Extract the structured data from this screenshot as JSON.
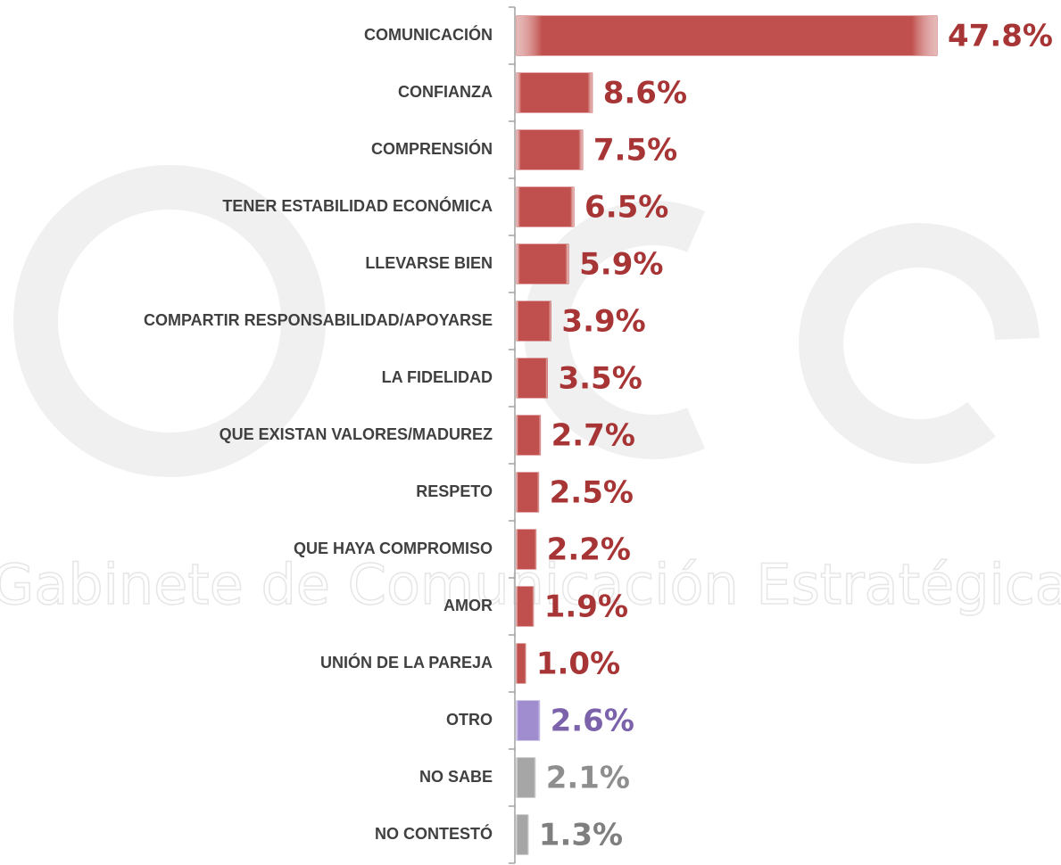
{
  "chart_data": {
    "type": "barh",
    "watermark": "Gabinete de Comunicación Estratégica",
    "categories": [
      "COMUNICACIÓN",
      "CONFIANZA",
      "COMPRENSIÓN",
      "TENER ESTABILIDAD ECONÓMICA",
      "LLEVARSE BIEN",
      "COMPARTIR RESPONSABILIDAD/APOYARSE",
      "LA FIDELIDAD",
      "QUE EXISTAN VALORES/MADUREZ",
      "RESPETO",
      "QUE HAYA COMPROMISO",
      "AMOR",
      "UNIÓN DE LA PAREJA",
      "OTRO",
      "NO SABE",
      "NO CONTESTÓ"
    ],
    "values": [
      47.8,
      8.6,
      7.5,
      6.5,
      5.9,
      3.9,
      3.5,
      2.7,
      2.5,
      2.2,
      1.9,
      1.0,
      2.6,
      2.1,
      1.3
    ],
    "value_labels": [
      "47.8%",
      "8.6%",
      "7.5%",
      "6.5%",
      "5.9%",
      "3.9%",
      "3.5%",
      "2.7%",
      "2.5%",
      "2.2%",
      "1.9%",
      "1.0%",
      "2.6%",
      "2.1%",
      "1.3%"
    ],
    "colors": [
      "#c0504d",
      "#c0504d",
      "#c0504d",
      "#c0504d",
      "#c0504d",
      "#c0504d",
      "#c0504d",
      "#c0504d",
      "#c0504d",
      "#c0504d",
      "#c0504d",
      "#c0504d",
      "#a08dd0",
      "#a6a6a6",
      "#a6a6a6"
    ],
    "label_colors": [
      "#a83535",
      "#a83535",
      "#a83535",
      "#a83535",
      "#a83535",
      "#a83535",
      "#a83535",
      "#a83535",
      "#a83535",
      "#a83535",
      "#a83535",
      "#a83535",
      "#7b62ab",
      "#8e8e8e",
      "#7f7f7f"
    ]
  }
}
